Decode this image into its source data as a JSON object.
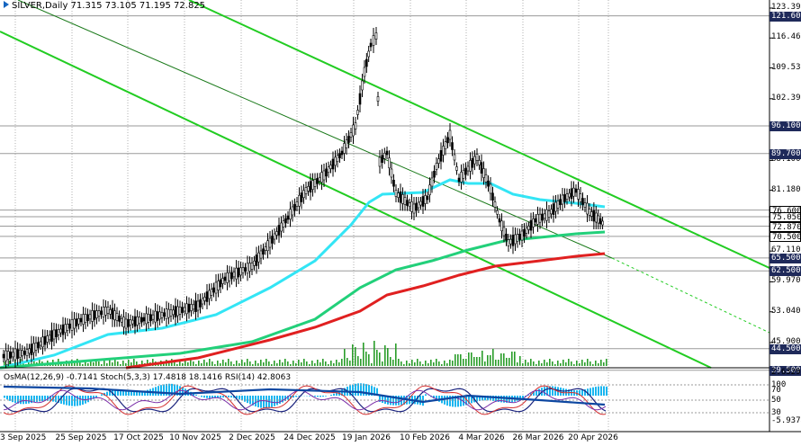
{
  "header": {
    "title": "SILVER,Daily",
    "ohlc": "71.315 73.105 71.195 72.825",
    "indicators": "OsMA(12,26,9) -0.7141  Stoch(5,3,3) 17.4818 18.1416  RSI(14) 42.8063"
  },
  "price_axis": [
    "123.390",
    "116.460",
    "109.530",
    "102.390",
    "95.230",
    "88.100",
    "81.180",
    "74.050",
    "67.110",
    "59.970",
    "53.040",
    "45.900"
  ],
  "level_tags": [
    {
      "label": "121.600",
      "bg": "#1f2a5a",
      "fg": "#ffffff",
      "price": 121.6
    },
    {
      "label": "96.100",
      "bg": "#1f2a5a",
      "fg": "#ffffff",
      "price": 96.1
    },
    {
      "label": "89.700",
      "bg": "#1f2a5a",
      "fg": "#ffffff",
      "price": 89.7
    },
    {
      "label": "76.600",
      "bg": "#ffffff",
      "fg": "#000000",
      "price": 76.6
    },
    {
      "label": "75.050",
      "bg": "#ffffff",
      "fg": "#000000",
      "price": 75.05
    },
    {
      "label": "72.870",
      "bg": "#ffffff",
      "fg": "#000000",
      "price": 72.87
    },
    {
      "label": "70.500",
      "bg": "#ffffff",
      "fg": "#000000",
      "price": 70.5
    },
    {
      "label": "65.500",
      "bg": "#1f2a5a",
      "fg": "#ffffff",
      "price": 65.5
    },
    {
      "label": "62.500",
      "bg": "#1f2a5a",
      "fg": "#ffffff",
      "price": 62.5
    },
    {
      "label": "44.500",
      "bg": "#1f2a5a",
      "fg": "#ffffff",
      "price": 44.5
    },
    {
      "label": "39.500",
      "bg": "#1f2a5a",
      "fg": "#ffffff",
      "price": 39.5
    }
  ],
  "osc_axis": [
    "2.6329",
    "100",
    "70",
    "50",
    "30",
    "-5.9374"
  ],
  "time_axis": [
    "3 Sep 2025",
    "25 Sep 2025",
    "17 Oct 2025",
    "10 Nov 2025",
    "2 Dec 2025",
    "24 Dec 2025",
    "19 Jan 2026",
    "10 Feb 2026",
    "4 Mar 2026",
    "26 Mar 2026",
    "20 Apr 2026"
  ],
  "colors": {
    "ma_fast": "#33e5f5",
    "ma_mid": "#22d07a",
    "ma_slow": "#e02020",
    "channel": "#22cc22",
    "candles": "#000000",
    "volume": "#2a9d2a",
    "osma": "#19b6f0",
    "stoch_main": "#1a237e",
    "stoch_sig": "#d32f2f",
    "rsi": "#7b2fa8"
  },
  "chart_data": {
    "type": "candlestick",
    "symbol": "SILVER",
    "timeframe": "Daily",
    "ylim": [
      39.5,
      123.39
    ],
    "close_trend": [
      {
        "x": "3 Sep 2025",
        "y": 41.0
      },
      {
        "x": "25 Sep 2025",
        "y": 45.6
      },
      {
        "x": "17 Oct 2025",
        "y": 51.5
      },
      {
        "x": "10 Nov 2025",
        "y": 50.3
      },
      {
        "x": "2 Dec 2025",
        "y": 57.5
      },
      {
        "x": "24 Dec 2025",
        "y": 73.5
      },
      {
        "x": "19 Jan 2026",
        "y": 116.0
      },
      {
        "x": "10 Feb 2026",
        "y": 78.0
      },
      {
        "x": "4 Mar 2026",
        "y": 86.0
      },
      {
        "x": "26 Mar 2026",
        "y": 71.0
      },
      {
        "x": "20 Apr 2026",
        "y": 75.0
      }
    ],
    "levels": [
      121.6,
      96.1,
      89.7,
      76.6,
      75.05,
      72.87,
      70.5,
      65.5,
      62.5,
      44.5,
      39.5
    ]
  }
}
